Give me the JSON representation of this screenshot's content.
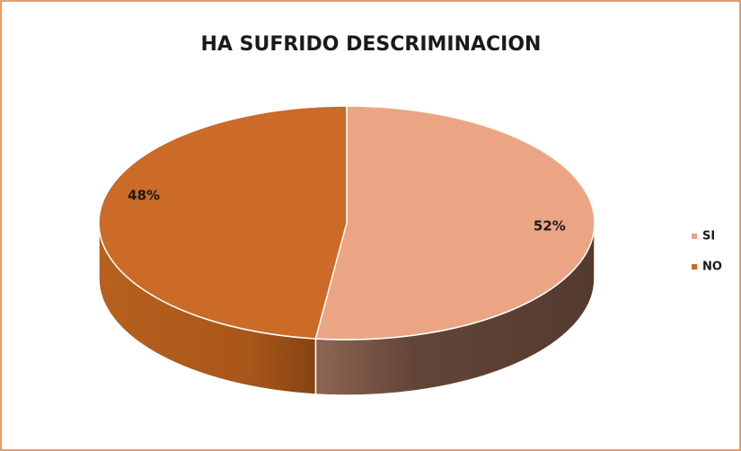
{
  "chart_data": {
    "type": "pie",
    "title": "HA SUFRIDO DESCRIMINACION",
    "categories": [
      "SI",
      "NO"
    ],
    "values": [
      52,
      48
    ],
    "value_labels": [
      "52%",
      "48%"
    ],
    "colors": [
      "#eba585",
      "#cc6a28"
    ],
    "legend": "right"
  }
}
